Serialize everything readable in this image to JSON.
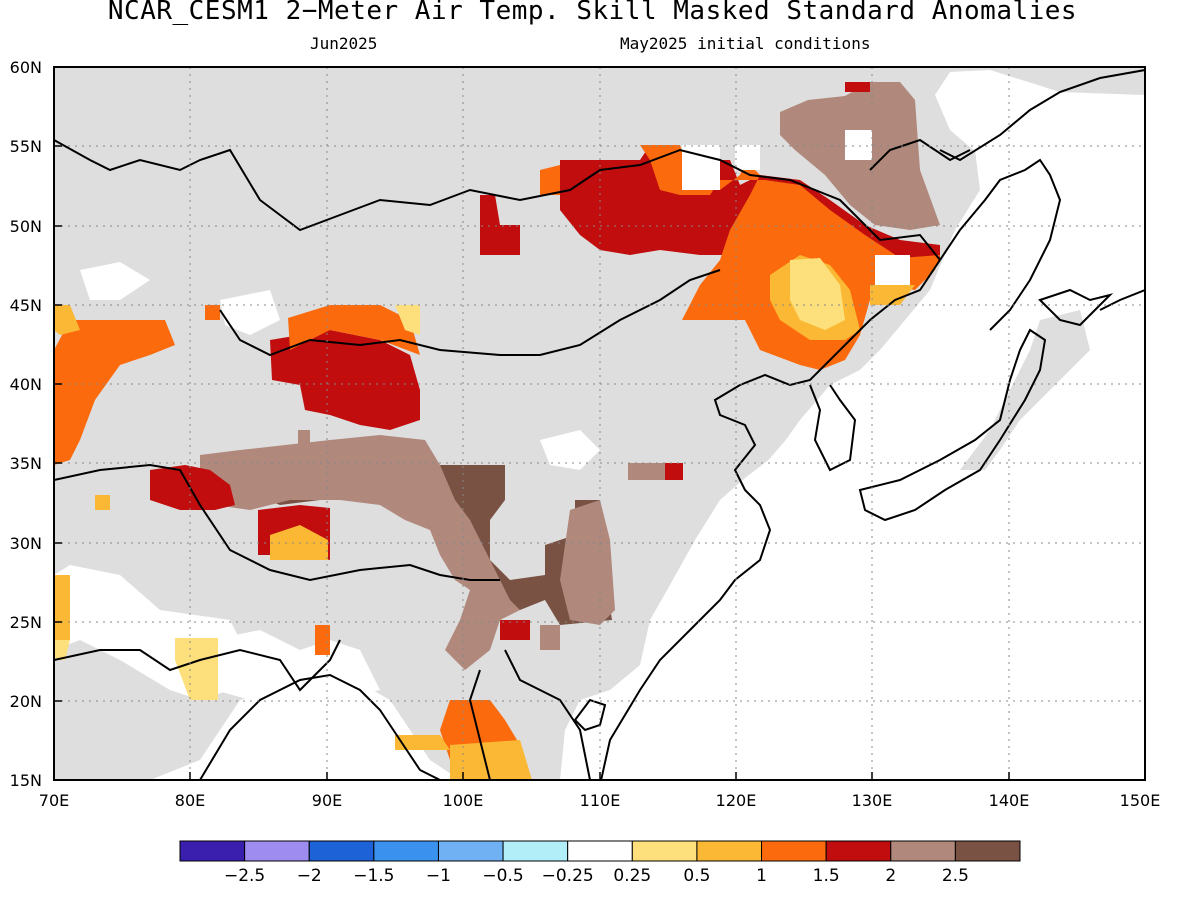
{
  "title": "NCAR_CESM1 2−Meter Air Temp. Skill Masked Standard Anomalies",
  "subtitle_left": "Jun2025",
  "subtitle_right": "May2025 initial conditions",
  "map": {
    "lat_ticks": [
      "60N",
      "55N",
      "50N",
      "45N",
      "40N",
      "35N",
      "30N",
      "25N",
      "20N",
      "15N"
    ],
    "lon_ticks": [
      "70E",
      "80E",
      "90E",
      "100E",
      "110E",
      "120E",
      "130E",
      "140E",
      "150E"
    ],
    "lon_range": [
      70,
      150
    ],
    "lat_range": [
      15,
      60
    ],
    "grid": "dotted",
    "land_mask_color": "#dedede"
  },
  "colorbar": {
    "colors": [
      "#3a1fae",
      "#9f8cf0",
      "#1d62d6",
      "#3a91ee",
      "#6fb1f2",
      "#b1eef8",
      "#ffffff",
      "#fde07c",
      "#fbb834",
      "#fb6b0e",
      "#c10d0d",
      "#b0887c",
      "#7a5244"
    ],
    "labels": [
      "−2.5",
      "−2",
      "−1.5",
      "−1",
      "−0.5",
      "−0.25",
      "0.25",
      "0.5",
      "1",
      "1.5",
      "2",
      "2.5"
    ]
  }
}
